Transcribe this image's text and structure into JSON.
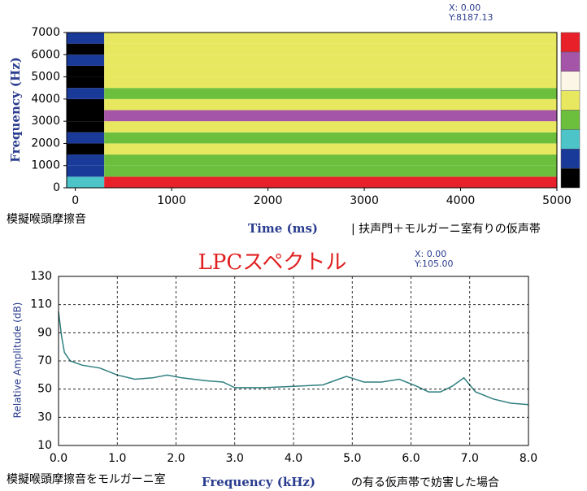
{
  "chart_data": [
    {
      "type": "heatmap",
      "cursor_x": "X: 0.00",
      "cursor_y": "Y:8187.13",
      "y_label": "Frequency (Hz)",
      "x_label": "Time (ms)",
      "caption": "| 扶声門＋モルガーニ室有りの仮声帯",
      "subtitle": "模擬喉頭摩擦音",
      "xlim": [
        -90,
        5000
      ],
      "ylim": [
        0,
        7000
      ],
      "xticks": [
        0,
        1000,
        2000,
        3000,
        4000,
        5000
      ],
      "yticks": [
        0,
        1000,
        2000,
        3000,
        4000,
        5000,
        6000,
        7000
      ],
      "x_edges": [
        -90,
        300,
        5000
      ],
      "y_edges": [
        0,
        500,
        1000,
        1500,
        2000,
        2500,
        3000,
        3500,
        4000,
        4500,
        5000,
        5500,
        6000,
        6500,
        7000
      ],
      "colors": [
        "#000000",
        "#1a3a9a",
        "#4cc4c8",
        "#6cbf3c",
        "#e8e860",
        "#fbf6e6",
        "#a455a8",
        "#e8202a"
      ],
      "levels": [
        [
          2,
          7
        ],
        [
          1,
          3
        ],
        [
          1,
          3
        ],
        [
          0,
          4
        ],
        [
          1,
          3
        ],
        [
          0,
          4
        ],
        [
          0,
          6
        ],
        [
          0,
          4
        ],
        [
          1,
          3
        ],
        [
          0,
          4
        ],
        [
          0,
          4
        ],
        [
          1,
          4
        ],
        [
          0,
          4
        ],
        [
          1,
          4
        ]
      ],
      "grid": false
    },
    {
      "type": "line",
      "title": "LPCスペクトル",
      "cursor_x": "X: 0.00",
      "cursor_y": "Y:105.00",
      "y_label": "Relative Amplitude (dB)",
      "x_label": "Frequency (kHz)",
      "caption": "の有る仮声帯で妨害した場合",
      "subtitle": "模擬喉頭摩擦音をモルガーニ室",
      "xlim": [
        0,
        8
      ],
      "ylim": [
        10,
        130
      ],
      "xticks": [
        {
          "value": 0,
          "label": "0.0"
        },
        {
          "value": 1,
          "label": "1.0"
        },
        {
          "value": 2,
          "label": "2.0"
        },
        {
          "value": 3,
          "label": "3.0"
        },
        {
          "value": 4,
          "label": "4.0"
        },
        {
          "value": 5,
          "label": "5.0"
        },
        {
          "value": 6,
          "label": "6.0"
        },
        {
          "value": 7,
          "label": "7.0"
        },
        {
          "value": 8,
          "label": "8.0"
        }
      ],
      "yticks": [
        10,
        30,
        50,
        70,
        90,
        110,
        130
      ],
      "x": [
        0,
        0.05,
        0.1,
        0.2,
        0.4,
        0.7,
        1.0,
        1.3,
        1.6,
        1.85,
        2.1,
        2.5,
        2.8,
        3.0,
        3.5,
        4.0,
        4.5,
        4.7,
        4.9,
        5.2,
        5.5,
        5.8,
        6.1,
        6.3,
        6.5,
        6.7,
        6.9,
        7.1,
        7.4,
        7.7,
        8.0
      ],
      "values": [
        105,
        88,
        76,
        70,
        67,
        65,
        60,
        57,
        58,
        60,
        58,
        56,
        55,
        51,
        51,
        52,
        53,
        56,
        59,
        55,
        55,
        57,
        52,
        48,
        48,
        52,
        58,
        48,
        43,
        40,
        39
      ],
      "color": "#2f7f80",
      "grid": true
    }
  ]
}
